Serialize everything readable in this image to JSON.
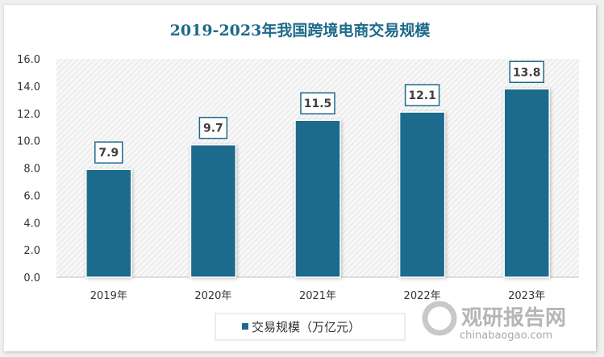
{
  "chart_data": {
    "type": "bar",
    "title": "2019-2023年我国跨境电商交易规模",
    "categories": [
      "2019年",
      "2020年",
      "2021年",
      "2022年",
      "2023年"
    ],
    "series": [
      {
        "name": "交易规模（万亿元）",
        "values": [
          7.9,
          9.7,
          11.5,
          12.1,
          13.8
        ]
      }
    ],
    "data_labels": [
      "7.9",
      "9.7",
      "11.5",
      "12.1",
      "13.8"
    ],
    "y_ticks": [
      "0.0",
      "2.0",
      "4.0",
      "6.0",
      "8.0",
      "10.0",
      "12.0",
      "14.0",
      "16.0"
    ],
    "ylim": [
      0,
      16
    ],
    "xlabel": "",
    "ylabel": "",
    "grid": false,
    "legend_position": "bottom",
    "colors": {
      "bar": "#1d6a8c",
      "title": "#1f6a8a",
      "label_border": "#1d6a8c"
    }
  },
  "watermark": {
    "brand": "观研报告网",
    "url": "chinabaogao.com"
  }
}
